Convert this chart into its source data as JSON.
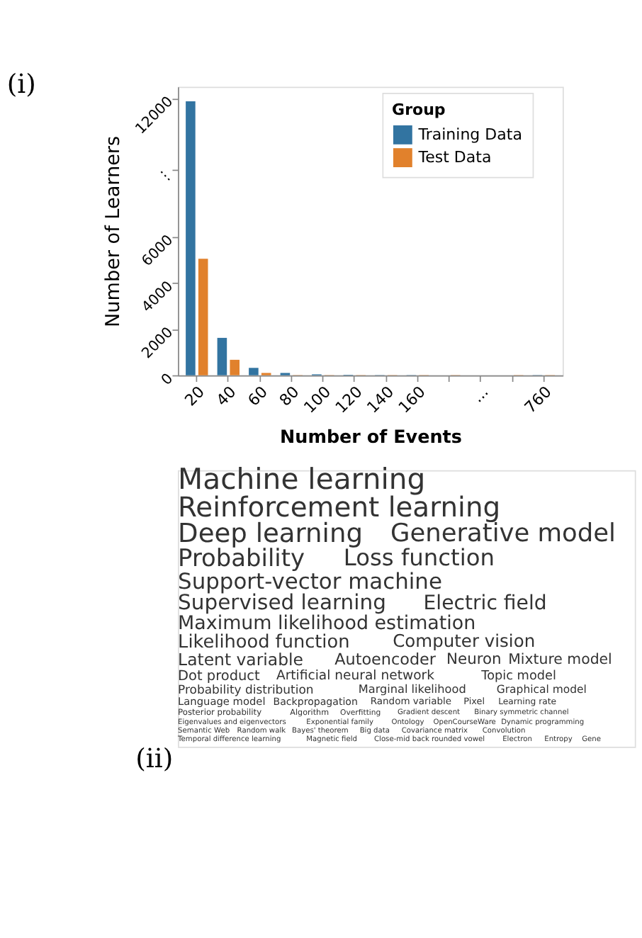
{
  "chart_data": [
    {
      "type": "bar",
      "title": "(i)",
      "xlabel": "Number of Events",
      "ylabel": "Number of Learners",
      "legend_title": "Group",
      "categories": [
        "20",
        "40",
        "60",
        "80",
        "100",
        "120",
        "140",
        "160",
        null,
        "...",
        null,
        "760"
      ],
      "series": [
        {
          "name": "Training Data",
          "color": "#3274a1",
          "values": [
            11870,
            1620,
            320,
            100,
            40,
            20,
            10,
            10,
            0,
            0,
            0,
            10
          ]
        },
        {
          "name": "Test Data",
          "color": "#e1812c",
          "values": [
            5050,
            670,
            100,
            10,
            10,
            10,
            10,
            10,
            10,
            0,
            10,
            10
          ]
        }
      ],
      "ylim": [
        0,
        12500
      ],
      "yticks": [
        0,
        2000,
        4000,
        6000,
        {
          "value": 8900,
          "label": "⋮"
        },
        12000
      ],
      "grid": false,
      "legend": "top right"
    },
    {
      "type": "other",
      "title": "(ii)",
      "annotations": [
        "Machine learning",
        "Reinforcement learning",
        "Deep learning",
        "Generative model",
        "Probability",
        "Loss function",
        "Support-vector machine",
        "Supervised learning",
        "Electric field",
        "Maximum likelihood estimation",
        "Likelihood function",
        "Computer vision",
        "Latent variable",
        "Autoencoder",
        "Neuron",
        "Mixture model",
        "Dot product",
        "Artificial neural network",
        "Topic model",
        "Probability distribution",
        "Marginal likelihood",
        "Graphical model",
        "Language model",
        "Backpropagation",
        "Random variable",
        "Pixel",
        "Learning rate",
        "Posterior probability",
        "Algorithm",
        "Overfitting",
        "Gradient descent",
        "Binary symmetric channel",
        "Eigenvalues and eigenvectors",
        "Exponential family",
        "Ontology",
        "OpenCourseWare",
        "Dynamic programming",
        "Semantic Web",
        "Random walk",
        "Bayes' theorem",
        "Big data",
        "Covariance matrix",
        "Convolution",
        "Temporal difference learning",
        "Magnetic field",
        "Close-mid back rounded vowel",
        "Electron",
        "Entropy",
        "Gene"
      ]
    }
  ]
}
